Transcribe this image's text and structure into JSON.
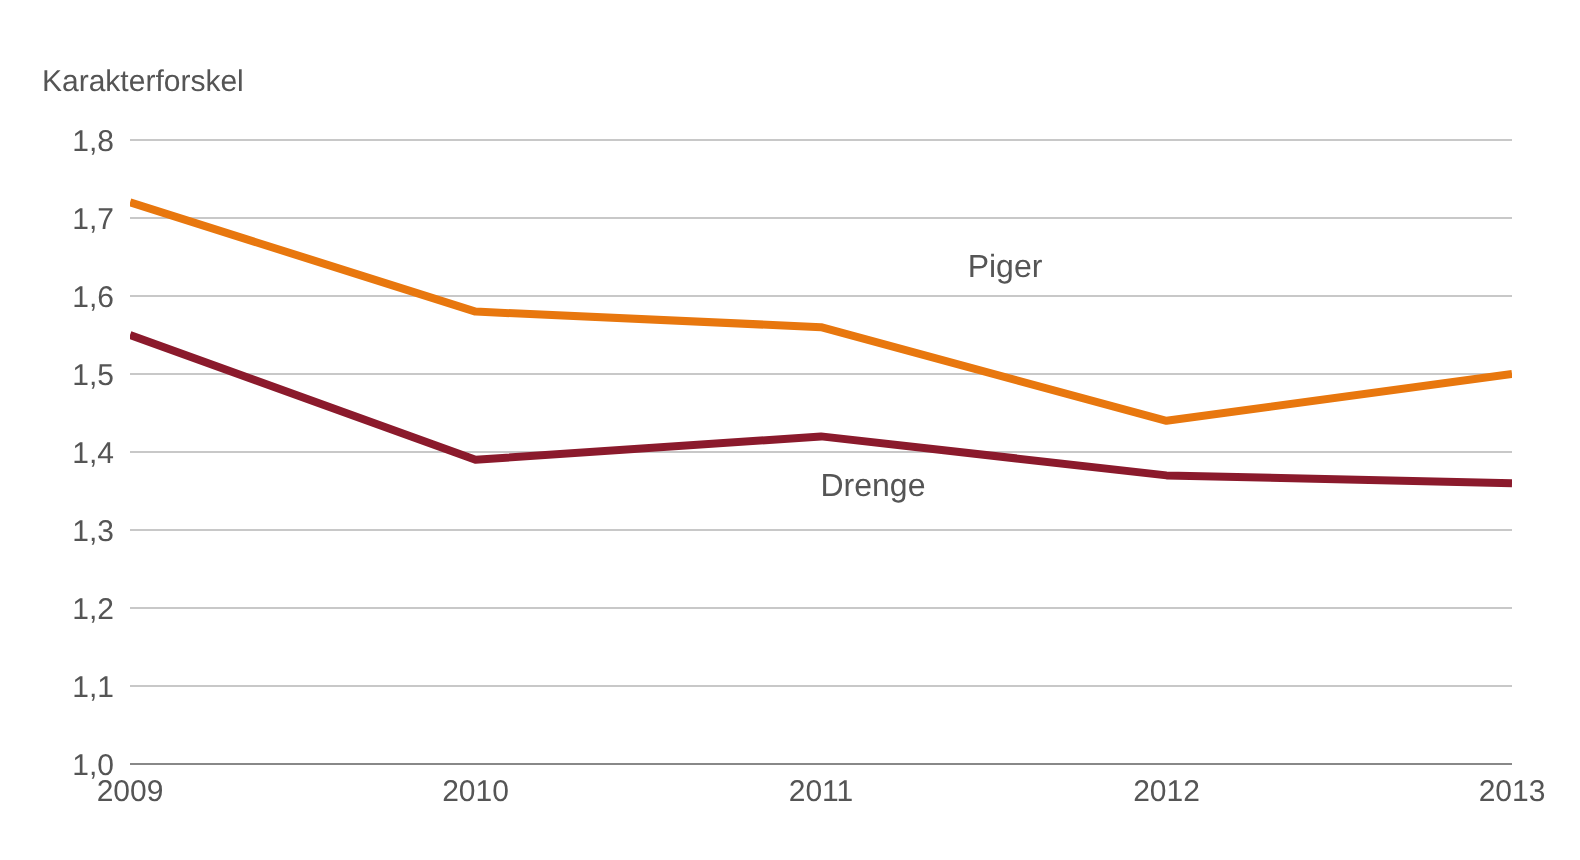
{
  "chart_data": {
    "type": "line",
    "ylabel": "Karakterforskel",
    "x": [
      2009,
      2010,
      2011,
      2012,
      2013
    ],
    "series": [
      {
        "name": "Piger",
        "color": "#e8770e",
        "values": [
          1.72,
          1.58,
          1.56,
          1.44,
          1.5
        ]
      },
      {
        "name": "Drenge",
        "color": "#8b1a2c",
        "values": [
          1.55,
          1.39,
          1.42,
          1.37,
          1.36
        ]
      }
    ],
    "xlim": [
      2009,
      2013
    ],
    "xticks": [
      2009,
      2010,
      2011,
      2012,
      2013
    ],
    "ylim": [
      1.0,
      1.8
    ],
    "yticks": [
      {
        "value": 1.0,
        "label": "1,0"
      },
      {
        "value": 1.1,
        "label": "1,1"
      },
      {
        "value": 1.2,
        "label": "1,2"
      },
      {
        "value": 1.3,
        "label": "1,3"
      },
      {
        "value": 1.4,
        "label": "1,4"
      },
      {
        "value": 1.5,
        "label": "1,5"
      },
      {
        "value": 1.6,
        "label": "1,6"
      },
      {
        "value": 1.7,
        "label": "1,7"
      },
      {
        "value": 1.8,
        "label": "1,8"
      }
    ],
    "grid": "y",
    "legend": false,
    "marker": "none",
    "line_style": "solid"
  }
}
